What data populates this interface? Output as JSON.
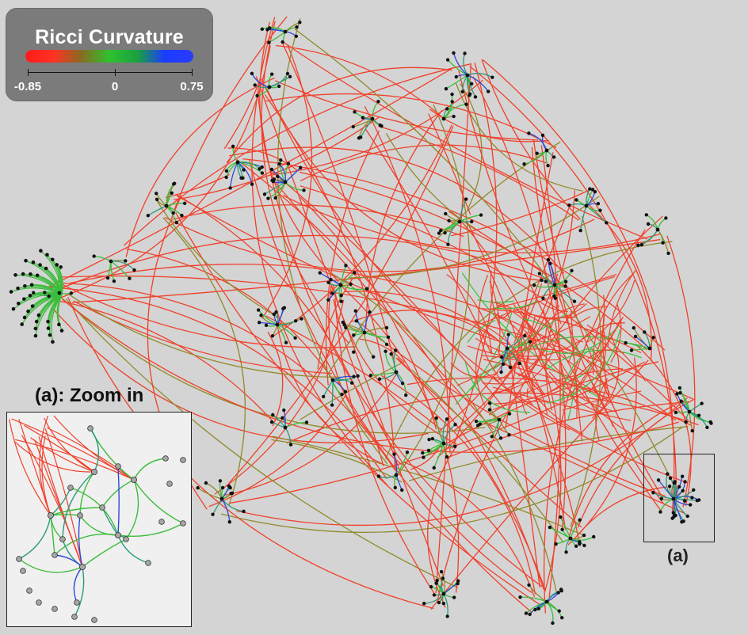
{
  "legend": {
    "title": "Ricci Curvature",
    "tick_min": "-0.85",
    "tick_mid": "0",
    "tick_max": "0.75",
    "colors": [
      "#ff1a1a",
      "#ff3322",
      "#8a6a22",
      "#2ec22e",
      "#1aa040",
      "#1a3cff",
      "#2a3cff"
    ]
  },
  "zoom": {
    "title": "(a): Zoom in",
    "region_label": "(a)"
  },
  "palette": {
    "negative": "#f0402a",
    "olive": "#8f8a2a",
    "positive_green": "#3bbd3b",
    "teal": "#2a9a7a",
    "blue": "#2a4ad8",
    "node": "#111111",
    "zoom_node": "#a6a6a6"
  }
}
